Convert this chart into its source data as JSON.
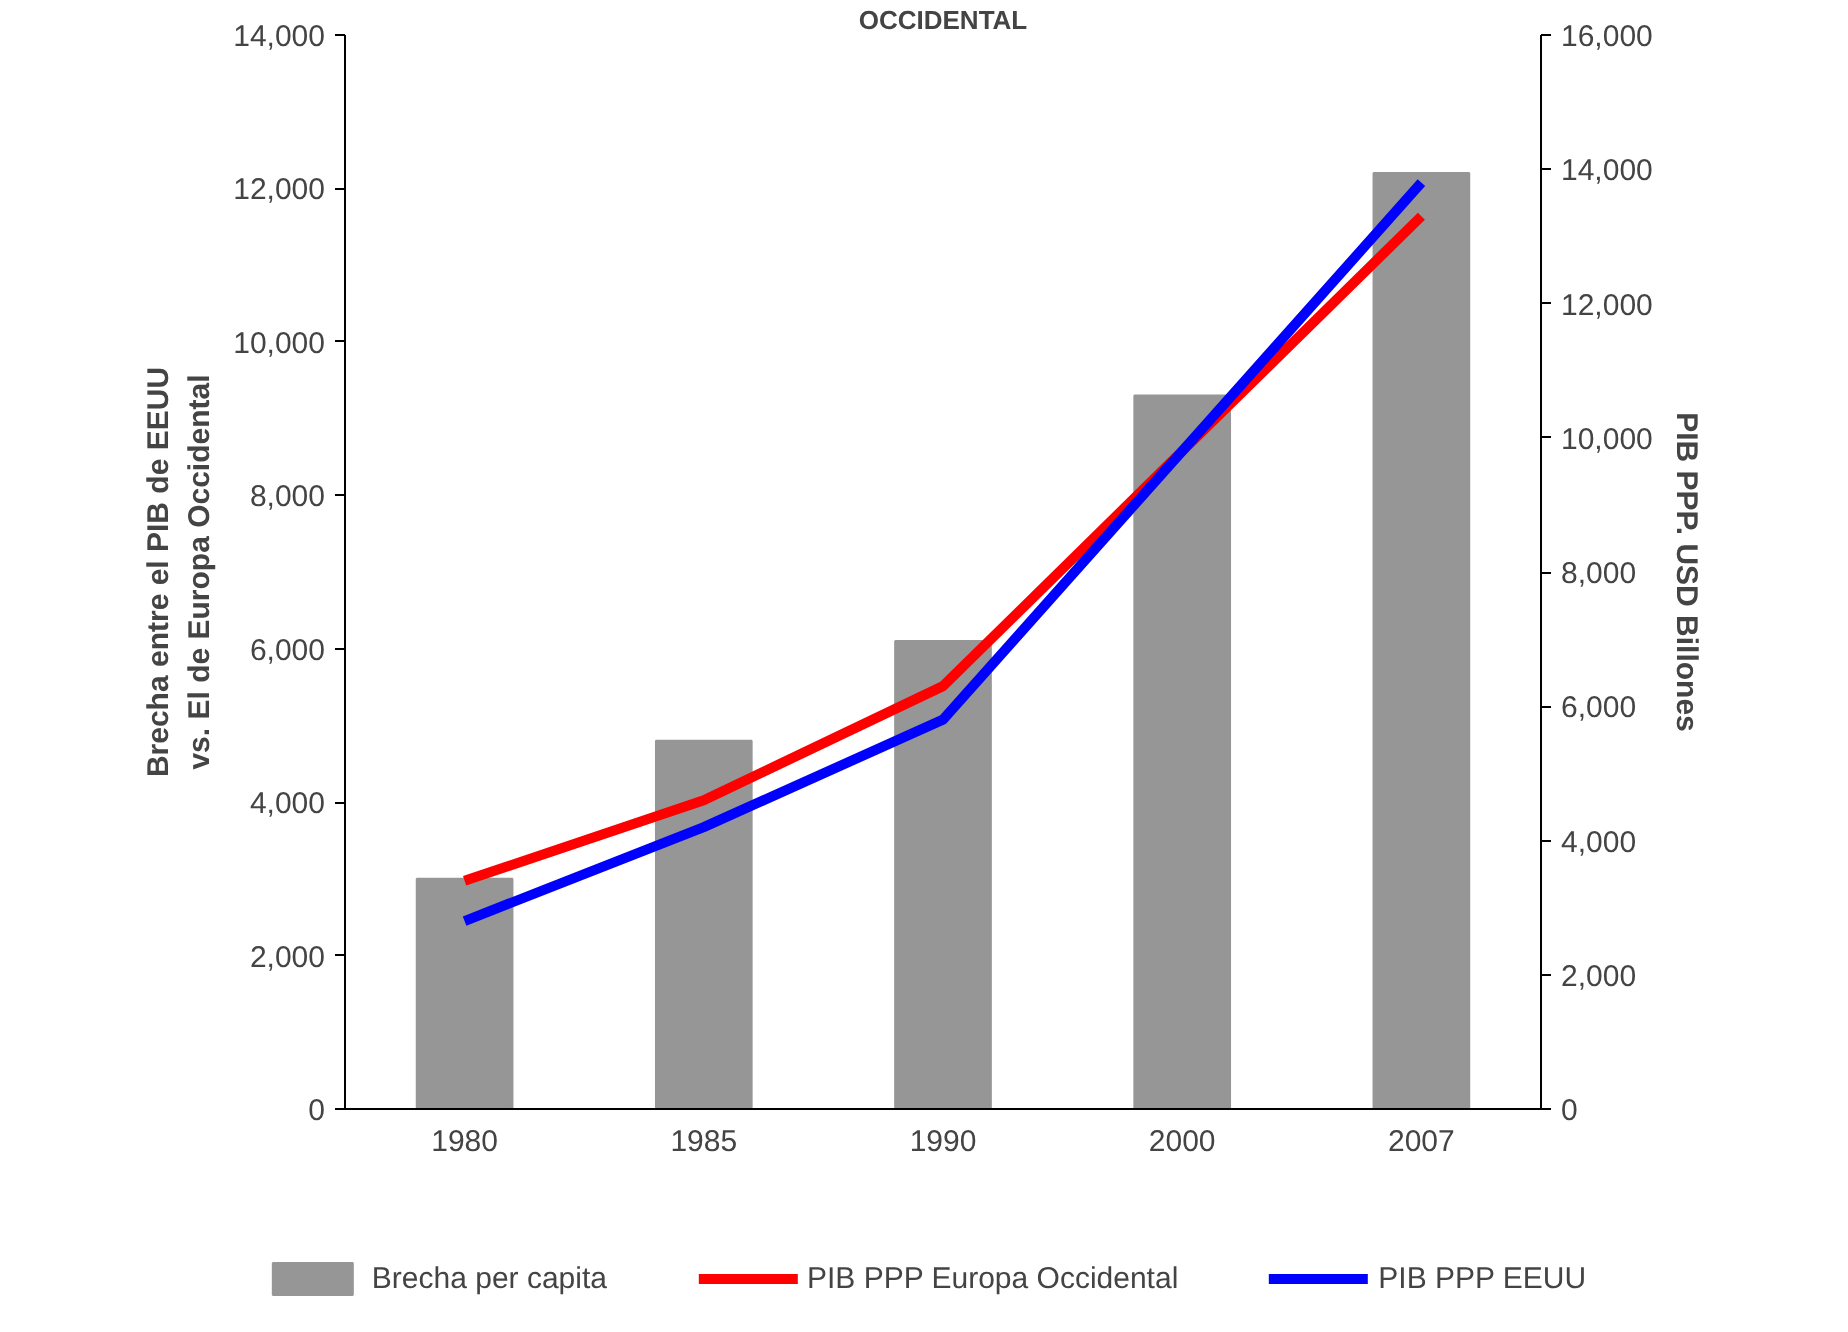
{
  "chart_data": {
    "type": "bar",
    "title": "OCCIDENTAL",
    "categories": [
      "1980",
      "1985",
      "1990",
      "2000",
      "2007"
    ],
    "ylabel": "Brecha entre el PIB de EEUU vs. El de Europa Occidental",
    "y2label": "PIB PPP. USD Billones",
    "series": [
      {
        "name": "Brecha per capita",
        "color": "#969696",
        "values": [
          3000,
          4800,
          6100,
          9300,
          12200
        ]
      },
      {
        "name": "PIB PPP Europa Occidental",
        "type": "line",
        "axis": "y2",
        "color": "#ff0000",
        "values": [
          3400,
          4600,
          6300,
          9800,
          13300
        ]
      },
      {
        "name": "PIB PPP EEUU",
        "type": "line",
        "axis": "y2",
        "color": "#0000ff",
        "values": [
          2800,
          4200,
          5800,
          9800,
          13800
        ]
      }
    ],
    "ylim": [
      0,
      14000
    ],
    "yticks": [
      0,
      {
        "value": 2000,
        "label": "2,000"
      },
      {
        "value": 4000,
        "label": "4,000"
      },
      {
        "value": 6000,
        "label": "6,000"
      },
      {
        "value": 8000,
        "label": "8,000"
      },
      {
        "value": 10000,
        "label": "10,000"
      },
      {
        "value": 12000,
        "label": "12,000"
      },
      {
        "value": 14000,
        "label": "14,000"
      }
    ],
    "y2lim": [
      0,
      16000
    ],
    "y2ticks": [
      0,
      {
        "value": 2000,
        "label": "2,000"
      },
      {
        "value": 4000,
        "label": "4,000"
      },
      {
        "value": 6000,
        "label": "6,000"
      },
      {
        "value": 8000,
        "label": "8,000"
      },
      {
        "value": 10000,
        "label": "10,000"
      },
      {
        "value": 12000,
        "label": "12,000"
      },
      {
        "value": 14000,
        "label": "14,000"
      },
      {
        "value": 16000,
        "label": "16,000"
      }
    ],
    "grid": false,
    "legend": "bottom",
    "line_style": "solid",
    "marker": "none"
  }
}
